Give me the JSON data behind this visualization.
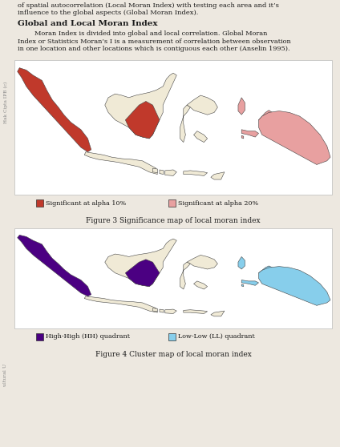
{
  "page_bg": "#ede8e0",
  "text_color": "#1a1a1a",
  "text_top": [
    "of spatial autocorrelation (Local Moran Index) with testing each area and it’s",
    "influence to the global aspects (Global Moran Index)."
  ],
  "section_title": "Global and Local Moran Index",
  "body_text": [
    "        Moran Index is divided into global and local correlation. Global Moran",
    "Index or Statistics Moran’s I is a measurement of correlation between observation",
    "in one location and other locations which is contiguous each other (Anselin 1995)."
  ],
  "fig3_caption": "Figure 3 Significance map of local moran index",
  "fig4_caption": "Figure 4 Cluster map of local moran index",
  "fig3_legend": [
    {
      "color": "#c0392b",
      "label": "Significant at alpha 10%"
    },
    {
      "color": "#e8a0a0",
      "label": "Significant at alpha 20%"
    }
  ],
  "fig4_legend": [
    {
      "color": "#4b0082",
      "label": "High-High (HH) quadrant"
    },
    {
      "color": "#87ceeb",
      "label": "Low-Low (LL) quadrant"
    }
  ],
  "map_ocean": "#ffffff",
  "map_default": "#f0ead6",
  "fig3_alpha10": "#c0392b",
  "fig3_alpha20": "#e8a0a0",
  "fig4_HH": "#4b0082",
  "fig4_LL": "#87ceeb",
  "sidebar_color": "#888888"
}
